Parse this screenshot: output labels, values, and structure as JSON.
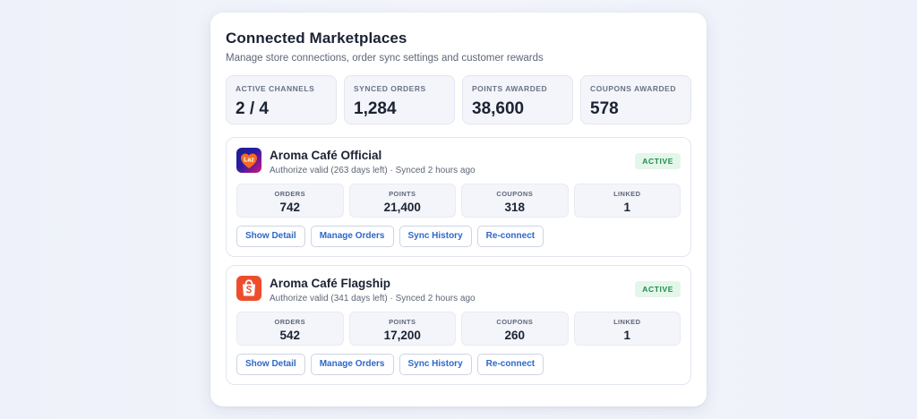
{
  "header": {
    "title": "Connected Marketplaces",
    "subtitle": "Manage store connections, order sync settings and customer rewards"
  },
  "summary": [
    {
      "label": "ACTIVE CHANNELS",
      "value": "2 / 4"
    },
    {
      "label": "SYNCED ORDERS",
      "value": "1,284"
    },
    {
      "label": "POINTS AWARDED",
      "value": "38,600"
    },
    {
      "label": "COUPONS AWARDED",
      "value": "578"
    }
  ],
  "channels": [
    {
      "icon": "lazada-logo-icon",
      "logo_text": "Laz",
      "name": "Aroma Café Official",
      "meta": "Authorize valid (263 days left) · Synced 2 hours ago",
      "status": "ACTIVE",
      "metrics": [
        {
          "label": "ORDERS",
          "value": "742"
        },
        {
          "label": "POINTS",
          "value": "21,400"
        },
        {
          "label": "COUPONS",
          "value": "318"
        },
        {
          "label": "LINKED",
          "value": "1"
        }
      ],
      "actions": [
        "Show Detail",
        "Manage Orders",
        "Sync History",
        "Re-connect"
      ]
    },
    {
      "icon": "shopee-logo-icon",
      "name": "Aroma Café Flagship",
      "meta": "Authorize valid (341 days left) · Synced 2 hours ago",
      "status": "ACTIVE",
      "metrics": [
        {
          "label": "ORDERS",
          "value": "542"
        },
        {
          "label": "POINTS",
          "value": "17,200"
        },
        {
          "label": "COUPONS",
          "value": "260"
        },
        {
          "label": "LINKED",
          "value": "1"
        }
      ],
      "actions": [
        "Show Detail",
        "Manage Orders",
        "Sync History",
        "Re-connect"
      ]
    }
  ],
  "colors": {
    "accent": "#2f67c9",
    "status_bg": "#e3f6ea",
    "status_text": "#1f8a4c",
    "lazada_brand": "#2b1ba6",
    "shopee_brand": "#ee4d2d"
  }
}
